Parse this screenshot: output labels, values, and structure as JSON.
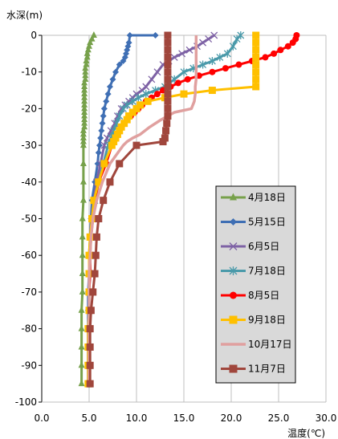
{
  "chart_data": {
    "type": "line",
    "xlabel": "温度(℃)",
    "ylabel": "水深(m)",
    "xlim": [
      0,
      30
    ],
    "ylim": [
      -100,
      0
    ],
    "xticks": [
      "0.0",
      "5.0",
      "10.0",
      "15.0",
      "20.0",
      "25.0",
      "30.0"
    ],
    "yticks": [
      "0",
      "-10",
      "-20",
      "-30",
      "-40",
      "-50",
      "-60",
      "-70",
      "-80",
      "-90",
      "-100"
    ],
    "grid": "vertical",
    "legend_position": "right",
    "series": [
      {
        "name": "4月18日",
        "color": "#77a14b",
        "marker": "triangle",
        "points": [
          [
            5.5,
            0
          ],
          [
            5.3,
            -1
          ],
          [
            5.1,
            -2
          ],
          [
            5.0,
            -3
          ],
          [
            4.9,
            -4
          ],
          [
            4.8,
            -5
          ],
          [
            4.8,
            -6
          ],
          [
            4.7,
            -7
          ],
          [
            4.7,
            -8
          ],
          [
            4.6,
            -9
          ],
          [
            4.6,
            -10
          ],
          [
            4.6,
            -11
          ],
          [
            4.6,
            -12
          ],
          [
            4.5,
            -13
          ],
          [
            4.5,
            -14
          ],
          [
            4.5,
            -15
          ],
          [
            4.5,
            -16
          ],
          [
            4.5,
            -17
          ],
          [
            4.5,
            -18
          ],
          [
            4.5,
            -19
          ],
          [
            4.5,
            -20
          ],
          [
            4.5,
            -21
          ],
          [
            4.5,
            -22
          ],
          [
            4.5,
            -23
          ],
          [
            4.5,
            -24
          ],
          [
            4.5,
            -25
          ],
          [
            4.4,
            -26
          ],
          [
            4.4,
            -27
          ],
          [
            4.4,
            -28
          ],
          [
            4.4,
            -29
          ],
          [
            4.4,
            -30
          ],
          [
            4.4,
            -35
          ],
          [
            4.4,
            -40
          ],
          [
            4.4,
            -45
          ],
          [
            4.3,
            -50
          ],
          [
            4.3,
            -55
          ],
          [
            4.3,
            -60
          ],
          [
            4.3,
            -65
          ],
          [
            4.3,
            -70
          ],
          [
            4.2,
            -75
          ],
          [
            4.2,
            -80
          ],
          [
            4.2,
            -85
          ],
          [
            4.2,
            -90
          ],
          [
            4.2,
            -95
          ]
        ]
      },
      {
        "name": "5月15日",
        "color": "#3f6fb4",
        "marker": "diamond",
        "points": [
          [
            12.0,
            0
          ],
          [
            9.3,
            0
          ],
          [
            9.2,
            -2
          ],
          [
            9.1,
            -3
          ],
          [
            9.0,
            -4
          ],
          [
            8.9,
            -5
          ],
          [
            8.8,
            -6
          ],
          [
            8.6,
            -7
          ],
          [
            8.2,
            -8
          ],
          [
            7.8,
            -10
          ],
          [
            7.5,
            -12
          ],
          [
            7.2,
            -14
          ],
          [
            7.0,
            -16
          ],
          [
            6.8,
            -18
          ],
          [
            6.6,
            -20
          ],
          [
            6.5,
            -22
          ],
          [
            6.4,
            -24
          ],
          [
            6.3,
            -26
          ],
          [
            6.2,
            -28
          ],
          [
            6.1,
            -30
          ],
          [
            6.0,
            -32
          ],
          [
            5.9,
            -35
          ],
          [
            5.6,
            -40
          ],
          [
            5.3,
            -45
          ],
          [
            5.2,
            -50
          ],
          [
            5.1,
            -55
          ],
          [
            5.0,
            -60
          ],
          [
            5.0,
            -65
          ],
          [
            4.9,
            -70
          ],
          [
            4.9,
            -75
          ],
          [
            4.9,
            -80
          ],
          [
            4.9,
            -85
          ],
          [
            4.9,
            -90
          ],
          [
            4.9,
            -95
          ]
        ]
      },
      {
        "name": "6月5日",
        "color": "#7e62a5",
        "marker": "x",
        "points": [
          [
            18.2,
            0
          ],
          [
            17.6,
            -1
          ],
          [
            17.0,
            -2
          ],
          [
            16.4,
            -3
          ],
          [
            15.6,
            -4
          ],
          [
            14.8,
            -5
          ],
          [
            14.0,
            -6
          ],
          [
            13.4,
            -7
          ],
          [
            12.8,
            -8
          ],
          [
            12.2,
            -10
          ],
          [
            11.6,
            -12
          ],
          [
            11.0,
            -14
          ],
          [
            10.6,
            -15
          ],
          [
            10.0,
            -16
          ],
          [
            9.6,
            -17
          ],
          [
            9.2,
            -18
          ],
          [
            8.8,
            -19
          ],
          [
            8.4,
            -20
          ],
          [
            8.0,
            -22
          ],
          [
            7.7,
            -24
          ],
          [
            7.3,
            -26
          ],
          [
            6.9,
            -28
          ],
          [
            6.6,
            -30
          ],
          [
            6.2,
            -35
          ],
          [
            5.8,
            -40
          ],
          [
            5.5,
            -45
          ],
          [
            5.3,
            -50
          ],
          [
            5.2,
            -55
          ],
          [
            5.1,
            -60
          ],
          [
            5.0,
            -65
          ],
          [
            5.0,
            -70
          ],
          [
            5.0,
            -75
          ],
          [
            4.9,
            -80
          ],
          [
            4.9,
            -85
          ],
          [
            4.9,
            -90
          ],
          [
            4.9,
            -95
          ]
        ]
      },
      {
        "name": "7月18日",
        "color": "#4a9aaa",
        "marker": "star",
        "points": [
          [
            21.0,
            0
          ],
          [
            20.6,
            -1
          ],
          [
            20.2,
            -3
          ],
          [
            19.6,
            -5
          ],
          [
            18.8,
            -6
          ],
          [
            18.0,
            -7
          ],
          [
            17.0,
            -8
          ],
          [
            16.0,
            -9
          ],
          [
            15.0,
            -10
          ],
          [
            14.0,
            -12
          ],
          [
            13.0,
            -14
          ],
          [
            12.0,
            -15
          ],
          [
            11.0,
            -16
          ],
          [
            10.2,
            -17
          ],
          [
            9.6,
            -18
          ],
          [
            9.0,
            -19
          ],
          [
            8.6,
            -20
          ],
          [
            8.2,
            -22
          ],
          [
            7.9,
            -24
          ],
          [
            7.6,
            -26
          ],
          [
            7.3,
            -28
          ],
          [
            7.0,
            -30
          ],
          [
            6.5,
            -35
          ],
          [
            6.0,
            -40
          ],
          [
            5.6,
            -45
          ],
          [
            5.4,
            -50
          ],
          [
            5.2,
            -55
          ],
          [
            5.1,
            -60
          ],
          [
            5.1,
            -65
          ],
          [
            5.0,
            -70
          ],
          [
            5.0,
            -75
          ],
          [
            5.0,
            -80
          ],
          [
            5.0,
            -85
          ],
          [
            5.0,
            -90
          ],
          [
            5.0,
            -95
          ]
        ]
      },
      {
        "name": "8月5日",
        "color": "#ff0000",
        "marker": "circle",
        "points": [
          [
            26.9,
            0
          ],
          [
            26.8,
            -1
          ],
          [
            26.5,
            -2
          ],
          [
            26.0,
            -3
          ],
          [
            25.2,
            -4
          ],
          [
            24.5,
            -5
          ],
          [
            23.6,
            -6
          ],
          [
            22.2,
            -7
          ],
          [
            20.8,
            -8
          ],
          [
            19.4,
            -9
          ],
          [
            18.0,
            -10
          ],
          [
            16.6,
            -11
          ],
          [
            15.4,
            -12
          ],
          [
            14.4,
            -13
          ],
          [
            13.6,
            -14
          ],
          [
            12.8,
            -15
          ],
          [
            12.2,
            -16
          ],
          [
            11.6,
            -17
          ],
          [
            11.0,
            -18
          ],
          [
            10.6,
            -19
          ],
          [
            10.2,
            -20
          ],
          [
            9.8,
            -21
          ],
          [
            9.4,
            -22
          ],
          [
            9.0,
            -23
          ],
          [
            8.7,
            -24
          ],
          [
            8.4,
            -25
          ],
          [
            8.2,
            -26
          ],
          [
            8.0,
            -27
          ],
          [
            7.8,
            -28
          ],
          [
            7.6,
            -29
          ],
          [
            7.4,
            -30
          ],
          [
            6.8,
            -35
          ],
          [
            6.0,
            -40
          ],
          [
            5.6,
            -45
          ],
          [
            5.4,
            -50
          ],
          [
            5.2,
            -55
          ],
          [
            5.1,
            -60
          ],
          [
            5.1,
            -65
          ],
          [
            5.0,
            -70
          ],
          [
            5.0,
            -75
          ],
          [
            5.0,
            -80
          ],
          [
            5.0,
            -85
          ],
          [
            5.0,
            -90
          ],
          [
            5.0,
            -95
          ]
        ]
      },
      {
        "name": "9月18日",
        "color": "#ffc000",
        "marker": "square",
        "points": [
          [
            22.6,
            0
          ],
          [
            22.6,
            -2
          ],
          [
            22.6,
            -4
          ],
          [
            22.6,
            -6
          ],
          [
            22.6,
            -8
          ],
          [
            22.6,
            -10
          ],
          [
            22.6,
            -12
          ],
          [
            22.6,
            -14
          ],
          [
            18.0,
            -15
          ],
          [
            15.0,
            -16
          ],
          [
            13.0,
            -17
          ],
          [
            11.2,
            -18
          ],
          [
            10.4,
            -19
          ],
          [
            10.0,
            -20
          ],
          [
            9.6,
            -21
          ],
          [
            9.2,
            -22
          ],
          [
            9.0,
            -23
          ],
          [
            8.7,
            -24
          ],
          [
            8.4,
            -25
          ],
          [
            8.2,
            -26
          ],
          [
            8.0,
            -27
          ],
          [
            7.8,
            -28
          ],
          [
            7.6,
            -29
          ],
          [
            7.4,
            -30
          ],
          [
            6.6,
            -35
          ],
          [
            6.0,
            -40
          ],
          [
            5.5,
            -45
          ],
          [
            5.3,
            -50
          ],
          [
            5.1,
            -55
          ],
          [
            5.0,
            -60
          ],
          [
            5.0,
            -65
          ],
          [
            5.0,
            -70
          ],
          [
            5.0,
            -75
          ],
          [
            4.9,
            -80
          ],
          [
            4.9,
            -85
          ],
          [
            4.9,
            -90
          ],
          [
            4.9,
            -95
          ]
        ]
      },
      {
        "name": "10月17日",
        "color": "#e0a09f",
        "marker": "none",
        "points": [
          [
            16.3,
            0
          ],
          [
            16.3,
            -2
          ],
          [
            16.3,
            -4
          ],
          [
            16.3,
            -6
          ],
          [
            16.3,
            -8
          ],
          [
            16.3,
            -10
          ],
          [
            16.3,
            -12
          ],
          [
            16.2,
            -14
          ],
          [
            16.2,
            -16
          ],
          [
            16.1,
            -18
          ],
          [
            15.8,
            -20
          ],
          [
            14.0,
            -21
          ],
          [
            12.6,
            -23
          ],
          [
            11.4,
            -25
          ],
          [
            10.4,
            -27
          ],
          [
            9.6,
            -28
          ],
          [
            9.0,
            -29
          ],
          [
            8.6,
            -30
          ],
          [
            7.2,
            -35
          ],
          [
            6.4,
            -40
          ],
          [
            5.8,
            -45
          ],
          [
            5.4,
            -50
          ],
          [
            5.2,
            -55
          ],
          [
            5.1,
            -60
          ],
          [
            5.0,
            -65
          ],
          [
            5.0,
            -70
          ],
          [
            5.0,
            -75
          ],
          [
            5.0,
            -80
          ],
          [
            5.0,
            -85
          ],
          [
            5.0,
            -90
          ],
          [
            5.0,
            -95
          ]
        ]
      },
      {
        "name": "11月7日",
        "color": "#a0463c",
        "marker": "square",
        "points": [
          [
            13.3,
            0
          ],
          [
            13.3,
            -2
          ],
          [
            13.3,
            -4
          ],
          [
            13.3,
            -6
          ],
          [
            13.3,
            -8
          ],
          [
            13.3,
            -10
          ],
          [
            13.3,
            -12
          ],
          [
            13.3,
            -14
          ],
          [
            13.3,
            -16
          ],
          [
            13.3,
            -18
          ],
          [
            13.3,
            -20
          ],
          [
            13.3,
            -22
          ],
          [
            13.2,
            -24
          ],
          [
            13.1,
            -26
          ],
          [
            13.0,
            -28
          ],
          [
            12.8,
            -29
          ],
          [
            10.0,
            -30
          ],
          [
            8.2,
            -35
          ],
          [
            7.2,
            -40
          ],
          [
            6.5,
            -45
          ],
          [
            6.0,
            -50
          ],
          [
            5.8,
            -55
          ],
          [
            5.7,
            -60
          ],
          [
            5.6,
            -65
          ],
          [
            5.4,
            -70
          ],
          [
            5.2,
            -75
          ],
          [
            5.1,
            -80
          ],
          [
            5.1,
            -85
          ],
          [
            5.1,
            -90
          ],
          [
            5.1,
            -95
          ]
        ]
      }
    ]
  }
}
